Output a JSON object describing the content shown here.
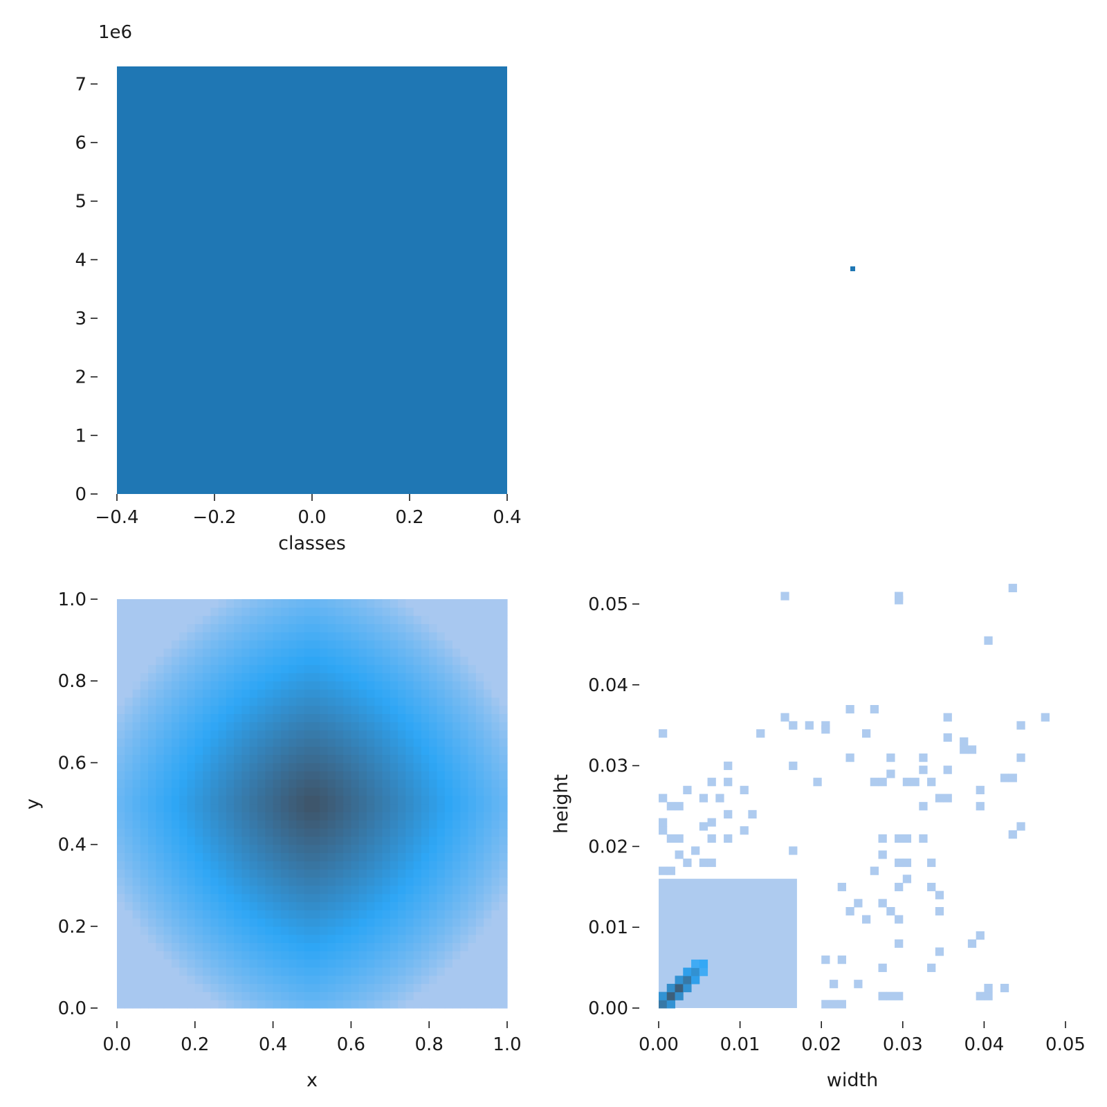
{
  "chart_data": [
    {
      "type": "bar",
      "categories": [
        0
      ],
      "values": [
        7300000
      ],
      "title": "",
      "xlabel": "classes",
      "ylabel": "",
      "xlim": [
        -0.4,
        0.4
      ],
      "ylim": [
        0,
        7300000
      ],
      "bar_range": [
        -0.4,
        0.4
      ],
      "xticks": [
        "−0.4",
        "−0.2",
        "0.0",
        "0.2",
        "0.4"
      ],
      "yticks": [
        "0",
        "1",
        "2",
        "3",
        "4",
        "5",
        "6",
        "7"
      ],
      "y_multiplier": "1e6",
      "color": "#1f77b4"
    },
    {
      "type": "scatter",
      "title": "",
      "xlabel": "",
      "ylabel": "",
      "points": [
        {
          "x": 0.0,
          "y": 0.0
        }
      ],
      "axes_visible": false,
      "color": "#1f77b4"
    },
    {
      "type": "heatmap",
      "title": "",
      "xlabel": "x",
      "ylabel": "y",
      "xlim": [
        0,
        1
      ],
      "ylim": [
        0,
        1
      ],
      "xticks": [
        "0.0",
        "0.2",
        "0.4",
        "0.6",
        "0.8",
        "1.0"
      ],
      "yticks": [
        "0.0",
        "0.2",
        "0.4",
        "0.6",
        "0.8",
        "1.0"
      ],
      "bins": 50,
      "peak": {
        "x": 0.5,
        "y": 0.5
      },
      "colors": {
        "low": "#a8c8f0",
        "mid": "#2ea6f5",
        "high": "#3f5266"
      }
    },
    {
      "type": "heatmap",
      "title": "",
      "xlabel": "width",
      "ylabel": "height",
      "xlim": [
        0,
        0.05
      ],
      "ylim": [
        0,
        0.05
      ],
      "xticks": [
        "0.00",
        "0.01",
        "0.02",
        "0.03",
        "0.04",
        "0.05"
      ],
      "yticks": [
        "0.00",
        "0.01",
        "0.02",
        "0.03",
        "0.04",
        "0.05"
      ],
      "bin_size": 0.001,
      "dense_region": {
        "width": [
          0,
          0.017
        ],
        "height": [
          0,
          0.016
        ]
      },
      "peak": {
        "width": 0.002,
        "height": 0.002
      },
      "outlier_cells": [
        [
          0.0155,
          0.051
        ],
        [
          0.0295,
          0.051
        ],
        [
          0.0295,
          0.0505
        ],
        [
          0.0435,
          0.052
        ],
        [
          0.0405,
          0.0455
        ],
        [
          0.0475,
          0.036
        ],
        [
          0.0155,
          0.036
        ],
        [
          0.0165,
          0.035
        ],
        [
          0.0185,
          0.035
        ],
        [
          0.0205,
          0.035
        ],
        [
          0.0205,
          0.0345
        ],
        [
          0.0235,
          0.037
        ],
        [
          0.0265,
          0.037
        ],
        [
          0.0355,
          0.036
        ],
        [
          0.0445,
          0.035
        ],
        [
          0.0005,
          0.034
        ],
        [
          0.0125,
          0.034
        ],
        [
          0.0255,
          0.034
        ],
        [
          0.0355,
          0.0335
        ],
        [
          0.0375,
          0.033
        ],
        [
          0.0385,
          0.032
        ],
        [
          0.0375,
          0.032
        ],
        [
          0.0445,
          0.031
        ],
        [
          0.0085,
          0.03
        ],
        [
          0.0165,
          0.03
        ],
        [
          0.0235,
          0.031
        ],
        [
          0.0285,
          0.031
        ],
        [
          0.0285,
          0.029
        ],
        [
          0.0325,
          0.031
        ],
        [
          0.0325,
          0.0295
        ],
        [
          0.0355,
          0.0295
        ],
        [
          0.0425,
          0.0285
        ],
        [
          0.0435,
          0.0285
        ],
        [
          0.0065,
          0.028
        ],
        [
          0.0085,
          0.028
        ],
        [
          0.0195,
          0.028
        ],
        [
          0.0265,
          0.028
        ],
        [
          0.0275,
          0.028
        ],
        [
          0.0305,
          0.028
        ],
        [
          0.0315,
          0.028
        ],
        [
          0.0335,
          0.028
        ],
        [
          0.0105,
          0.027
        ],
        [
          0.0035,
          0.027
        ],
        [
          0.0395,
          0.027
        ],
        [
          0.0005,
          0.026
        ],
        [
          0.0025,
          0.025
        ],
        [
          0.0055,
          0.026
        ],
        [
          0.0075,
          0.026
        ],
        [
          0.0345,
          0.026
        ],
        [
          0.0355,
          0.026
        ],
        [
          0.0395,
          0.025
        ],
        [
          0.0015,
          0.025
        ],
        [
          0.0325,
          0.025
        ],
        [
          0.0085,
          0.024
        ],
        [
          0.0115,
          0.024
        ],
        [
          0.0445,
          0.0225
        ],
        [
          0.0435,
          0.0215
        ],
        [
          0.0005,
          0.023
        ],
        [
          0.0055,
          0.0225
        ],
        [
          0.0065,
          0.023
        ],
        [
          0.0005,
          0.022
        ],
        [
          0.0025,
          0.021
        ],
        [
          0.0015,
          0.021
        ],
        [
          0.0085,
          0.021
        ],
        [
          0.0105,
          0.022
        ],
        [
          0.0065,
          0.021
        ],
        [
          0.0045,
          0.0195
        ],
        [
          0.0165,
          0.0195
        ],
        [
          0.0275,
          0.021
        ],
        [
          0.0295,
          0.021
        ],
        [
          0.0305,
          0.021
        ],
        [
          0.0325,
          0.021
        ],
        [
          0.0025,
          0.019
        ],
        [
          0.0035,
          0.018
        ],
        [
          0.0055,
          0.018
        ],
        [
          0.0065,
          0.018
        ],
        [
          0.0275,
          0.019
        ],
        [
          0.0295,
          0.018
        ],
        [
          0.0305,
          0.018
        ],
        [
          0.0335,
          0.018
        ],
        [
          0.0005,
          0.017
        ],
        [
          0.0015,
          0.017
        ],
        [
          0.0265,
          0.017
        ],
        [
          0.0305,
          0.016
        ],
        [
          0.0225,
          0.015
        ],
        [
          0.0295,
          0.015
        ],
        [
          0.0335,
          0.015
        ],
        [
          0.0345,
          0.014
        ],
        [
          0.0245,
          0.013
        ],
        [
          0.0275,
          0.013
        ],
        [
          0.0235,
          0.012
        ],
        [
          0.0285,
          0.012
        ],
        [
          0.0295,
          0.011
        ],
        [
          0.0345,
          0.012
        ],
        [
          0.0255,
          0.011
        ],
        [
          0.0395,
          0.009
        ],
        [
          0.0385,
          0.008
        ],
        [
          0.0295,
          0.008
        ],
        [
          0.0345,
          0.007
        ],
        [
          0.0205,
          0.006
        ],
        [
          0.0225,
          0.006
        ],
        [
          0.0275,
          0.005
        ],
        [
          0.0335,
          0.005
        ],
        [
          0.0215,
          0.003
        ],
        [
          0.0245,
          0.003
        ],
        [
          0.0275,
          0.0015
        ],
        [
          0.0285,
          0.0015
        ],
        [
          0.0295,
          0.0015
        ],
        [
          0.0395,
          0.0015
        ],
        [
          0.0405,
          0.0015
        ],
        [
          0.0405,
          0.0025
        ],
        [
          0.0425,
          0.0025
        ],
        [
          0.0205,
          0.0005
        ],
        [
          0.0215,
          0.0005
        ],
        [
          0.0225,
          0.0005
        ]
      ],
      "colors": {
        "low": "#aecbef",
        "mid": "#2ea6f5",
        "high": "#3f5266"
      }
    }
  ]
}
